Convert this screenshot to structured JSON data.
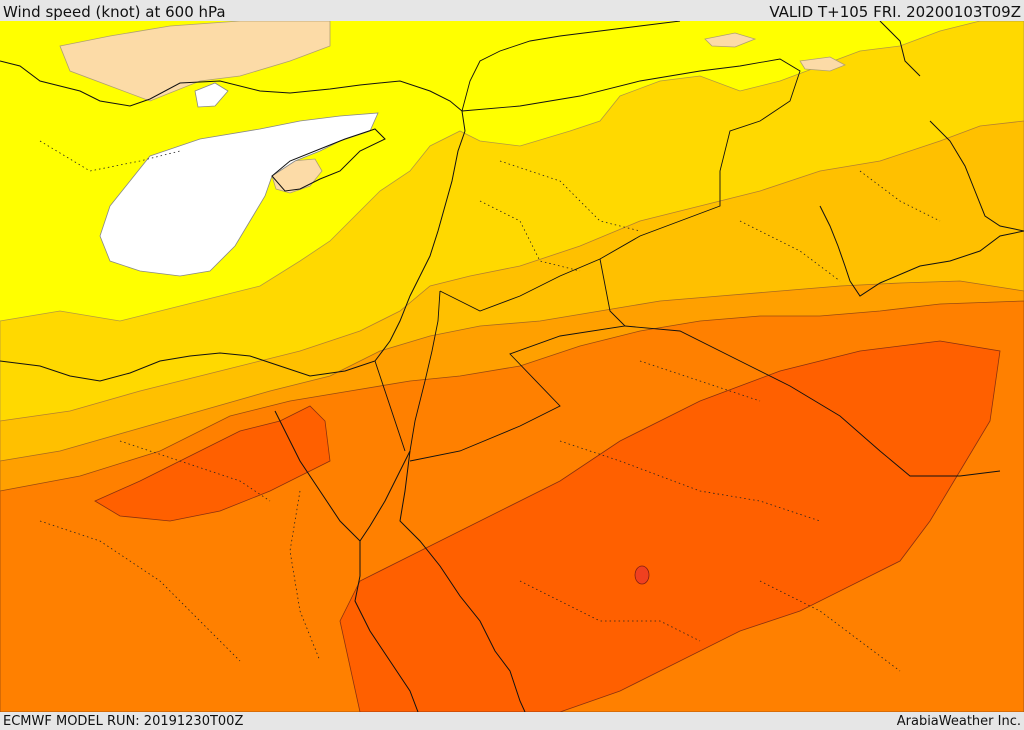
{
  "header": {
    "title": "Wind speed (knot) at 600 hPa",
    "valid": "VALID T+105 FRI. 20200103T09Z"
  },
  "footer": {
    "model_run": "ECMWF MODEL RUN: 20191230T00Z",
    "credit": "ArabiaWeather Inc."
  },
  "legend_colors": {
    "calm": "#ffffff",
    "light_tan": "#fcdba7",
    "yellow": "#ffff00",
    "gold": "#ffd900",
    "amber": "#ffc000",
    "orange": "#ffa000",
    "dark_orange": "#ff8000",
    "red_orange": "#ff6000",
    "red": "#f04020"
  }
}
